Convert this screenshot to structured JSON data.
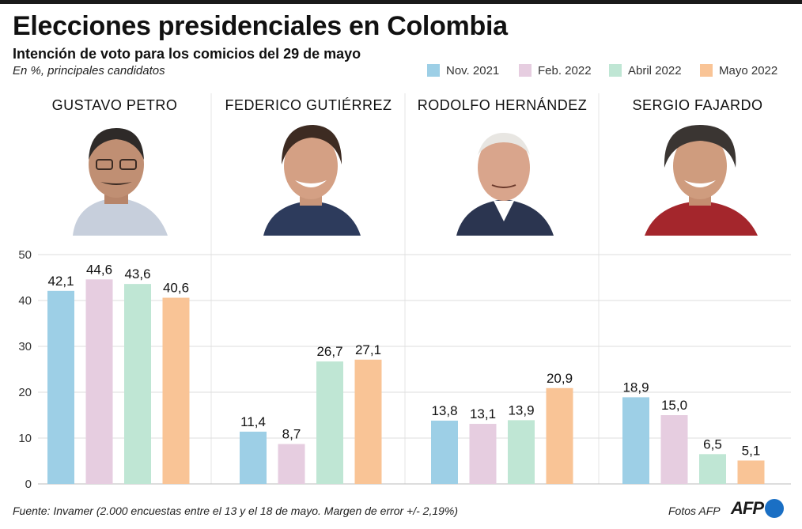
{
  "title": "Elecciones presidenciales en Colombia",
  "subtitle": "Intención de voto para los comicios del 29 de mayo",
  "note": "En %, principales candidatos",
  "footer": {
    "source": "Fuente: Invamer (2.000 encuestas entre el 13 y el 18 de mayo. Margen de error +/- 2,19%)",
    "photos": "Fotos AFP",
    "logo_text": "AFP"
  },
  "legend": [
    {
      "label": "Nov. 2021",
      "color": "#9dcfe6"
    },
    {
      "label": "Feb. 2022",
      "color": "#e6cde0"
    },
    {
      "label": "Abril 2022",
      "color": "#bfe6d4"
    },
    {
      "label": "Mayo 2022",
      "color": "#f9c496"
    }
  ],
  "candidates": [
    {
      "name": "GUSTAVO PETRO",
      "portrait_icon": "portrait-icon"
    },
    {
      "name": "FEDERICO GUTIÉRREZ",
      "portrait_icon": "portrait-icon"
    },
    {
      "name": "RODOLFO HERNÁNDEZ",
      "portrait_icon": "portrait-icon"
    },
    {
      "name": "SERGIO FAJARDO",
      "portrait_icon": "portrait-icon"
    }
  ],
  "chart_data": {
    "type": "bar",
    "categories": [
      "GUSTAVO PETRO",
      "FEDERICO GUTIÉRREZ",
      "RODOLFO HERNÁNDEZ",
      "SERGIO FAJARDO"
    ],
    "series": [
      {
        "name": "Nov. 2021",
        "values": [
          42.1,
          11.4,
          13.8,
          18.9
        ],
        "labels": [
          "42,1",
          "11,4",
          "13,8",
          "18,9"
        ]
      },
      {
        "name": "Feb. 2022",
        "values": [
          44.6,
          8.7,
          13.1,
          15.0
        ],
        "labels": [
          "44,6",
          "8,7",
          "13,1",
          "15,0"
        ]
      },
      {
        "name": "Abril 2022",
        "values": [
          43.6,
          26.7,
          13.9,
          6.5
        ],
        "labels": [
          "43,6",
          "26,7",
          "13,9",
          "6,5"
        ]
      },
      {
        "name": "Mayo 2022",
        "values": [
          40.6,
          27.1,
          20.9,
          5.1
        ],
        "labels": [
          "40,6",
          "27,1",
          "20,9",
          "5,1"
        ]
      }
    ],
    "ylim": [
      0,
      50
    ],
    "yticks": [
      0,
      10,
      20,
      30,
      40,
      50
    ],
    "grid": true,
    "legend_position": "top-right"
  },
  "colors": {
    "nov": "#9dcfe6",
    "feb": "#e6cde0",
    "abr": "#bfe6d4",
    "may": "#f9c496",
    "grid": "#dddddd",
    "divider": "#e6e6e6"
  }
}
